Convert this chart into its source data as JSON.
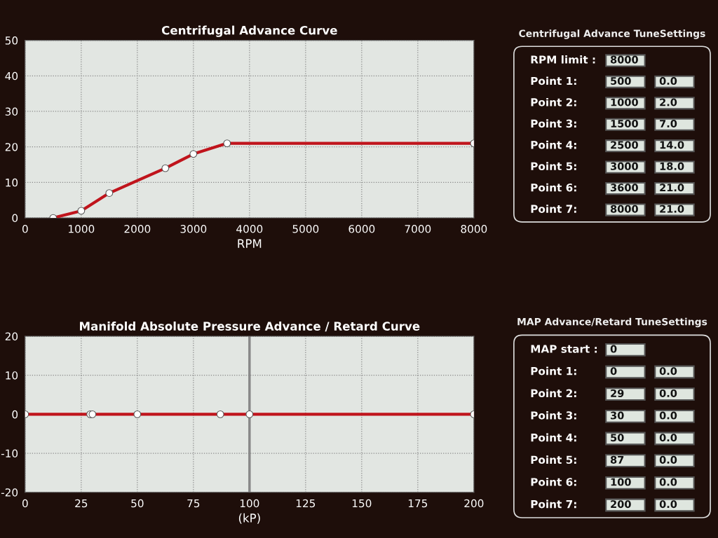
{
  "chart_data": [
    {
      "type": "line",
      "title": "Centrifugal Advance Curve",
      "xlabel": "RPM",
      "series": [
        {
          "color": "#c0141c",
          "x": [
            500,
            1000,
            1500,
            2500,
            3000,
            3600,
            8000
          ],
          "values": [
            0,
            2,
            7,
            14,
            18,
            21,
            21
          ]
        }
      ],
      "xlim": [
        0,
        8000
      ],
      "xticks": [
        0,
        1000,
        2000,
        3000,
        4000,
        5000,
        6000,
        7000,
        8000
      ],
      "ylim": [
        0,
        50
      ],
      "yticks": [
        0,
        10,
        20,
        30,
        40,
        50
      ],
      "grid": true,
      "marker": "circle",
      "line_style": "solid"
    },
    {
      "type": "other",
      "title": "Centrifugal Advance TuneSettings",
      "annotations": [
        "RPM limit :",
        "8000",
        "Point 1:",
        "500",
        "0.0",
        "Point 2:",
        "1000",
        "2.0",
        "Point 3:",
        "1500",
        "7.0",
        "Point 4:",
        "2500",
        "14.0",
        "Point 5:",
        "3000",
        "18.0",
        "Point 6:",
        "3600",
        "21.0",
        "Point 7:",
        "8000",
        "21.0"
      ]
    },
    {
      "type": "line",
      "title": "Manifold Absolute Pressure Advance / Retard Curve",
      "xlabel": "(kP)",
      "series": [
        {
          "color": "#c0141c",
          "x": [
            0,
            29,
            30,
            50,
            87,
            100,
            200
          ],
          "values": [
            0,
            0,
            0,
            0,
            0,
            0,
            0
          ]
        }
      ],
      "xlim": [
        0,
        200
      ],
      "xticks": [
        0,
        25,
        50,
        75,
        100,
        125,
        150,
        175,
        200
      ],
      "ylim": [
        -20,
        20
      ],
      "yticks": [
        -20,
        -10,
        0,
        10,
        20
      ],
      "grid": true,
      "marker": "circle",
      "line_style": "solid",
      "ref_lines": [
        {
          "axis": "x",
          "value": 100,
          "color": "#888888"
        }
      ]
    },
    {
      "type": "other",
      "title": "MAP Advance/Retard TuneSettings",
      "annotations": [
        "MAP start :",
        "0",
        "Point 1:",
        "0",
        "0.0",
        "Point 2:",
        "29",
        "0.0",
        "Point 3:",
        "30",
        "0.0",
        "Point 4:",
        "50",
        "0.0",
        "Point 5:",
        "87",
        "0.0",
        "Point 6:",
        "100",
        "0.0",
        "Point 7:",
        "200",
        "0.0"
      ]
    }
  ]
}
